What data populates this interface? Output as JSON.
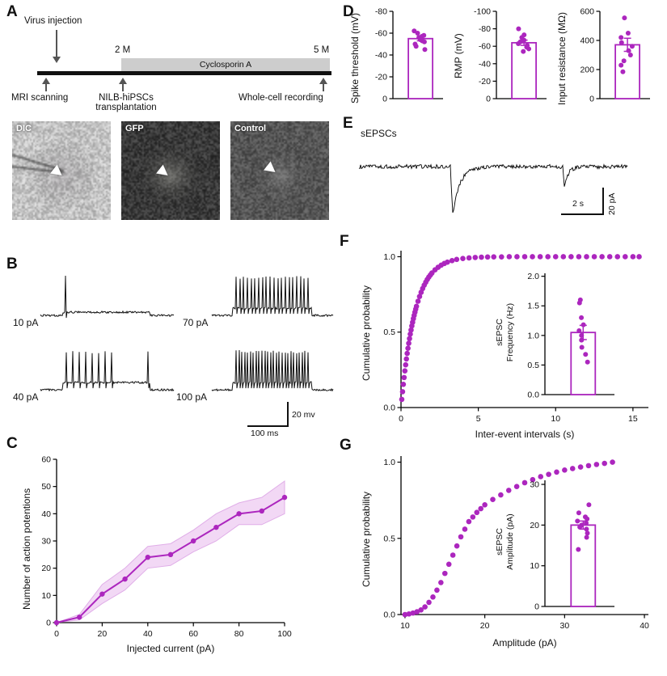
{
  "figure": {
    "accent": "#AC26BE",
    "accent_light": "#F2D8F5",
    "band_edge": "#E0AEE8",
    "background": "#ffffff"
  },
  "panel_letters": {
    "a": "A",
    "b": "B",
    "c": "C",
    "d": "D",
    "e": "E",
    "f": "F",
    "g": "G"
  },
  "panel_a": {
    "virus_injection": "Virus injection",
    "mri_scanning": "MRI scanning",
    "month2": "2 M",
    "month5": "5 M",
    "cyclosporin": "Cyclosporin A",
    "transplant_line1": "NILB-hiPSCs",
    "transplant_line2": "transplantation",
    "whole_cell": "Whole-cell recording",
    "images": [
      {
        "label": "DIC"
      },
      {
        "label": "GFP"
      },
      {
        "label": "Control"
      }
    ]
  },
  "panel_b": {
    "traces": [
      {
        "label": "10 pA",
        "spikes": 1,
        "pattern": "single"
      },
      {
        "label": "70 pA",
        "spikes": 20,
        "pattern": "full"
      },
      {
        "label": "40 pA",
        "spikes": 9,
        "pattern": "early"
      },
      {
        "label": "100 pA",
        "spikes": 26,
        "pattern": "full"
      }
    ],
    "scale_vertical": "20 mv",
    "scale_horizontal": "100 ms"
  },
  "panel_e": {
    "title": "sEPSCs",
    "scale_horizontal": "2 s",
    "scale_vertical": "20 pA"
  },
  "chart_data": [
    {
      "id": "C",
      "type": "line",
      "x": [
        0,
        10,
        20,
        30,
        40,
        50,
        60,
        70,
        80,
        90,
        100
      ],
      "values": [
        0,
        2,
        10.5,
        16,
        24,
        25,
        30,
        35,
        40,
        41,
        46
      ],
      "band_low": [
        0,
        1,
        7,
        12,
        20,
        21,
        26,
        30,
        36,
        36,
        40
      ],
      "band_high": [
        0,
        3,
        14,
        20,
        28,
        29,
        34,
        40,
        44,
        46,
        52
      ],
      "xlabel": "Injected current (pA)",
      "ylabel": "Number of action potentions",
      "xlim": [
        0,
        100
      ],
      "ylim": [
        0,
        60
      ],
      "xticks": [
        0,
        20,
        40,
        60,
        80,
        100
      ],
      "yticks": [
        0,
        10,
        20,
        30,
        40,
        50,
        60
      ],
      "xdec": 0,
      "ydec": 0
    },
    {
      "id": "D1",
      "type": "bar",
      "ylabel": "Spike threshold (mV)",
      "ylim": [
        0,
        -80
      ],
      "yticks": [
        0,
        -20,
        -40,
        -60,
        -80
      ],
      "ydec": 0,
      "value": -55,
      "err": 2,
      "points": [
        -45,
        -48,
        -50,
        -52,
        -53,
        -54,
        -55,
        -56,
        -57,
        -58,
        -60,
        -62
      ]
    },
    {
      "id": "D2",
      "type": "bar",
      "ylabel": "RMP (mV)",
      "ylim": [
        0,
        -100
      ],
      "yticks": [
        0,
        -20,
        -40,
        -60,
        -80,
        -100
      ],
      "ydec": 0,
      "value": -64,
      "err": 3,
      "points": [
        -54,
        -57,
        -59,
        -61,
        -63,
        -65,
        -67,
        -70,
        -73,
        -80
      ]
    },
    {
      "id": "D3",
      "type": "bar",
      "ylabel": "Input resistance (MΩ)",
      "ylim": [
        0,
        600
      ],
      "yticks": [
        0,
        200,
        400,
        600
      ],
      "ydec": 0,
      "value": 370,
      "err": 45,
      "points": [
        185,
        230,
        260,
        300,
        330,
        360,
        385,
        420,
        450,
        555
      ]
    },
    {
      "id": "F",
      "type": "scatter",
      "xlabel": "Inter-event intervals (s)",
      "ylabel": "Cumulative probability",
      "xlim": [
        0,
        16
      ],
      "ylim": [
        0,
        1.04
      ],
      "xticks": [
        0,
        5,
        10,
        15
      ],
      "yticks": [
        0,
        0.5,
        1
      ],
      "xdec": 0,
      "ydec": 1,
      "points": [
        [
          0.05,
          0.054
        ],
        [
          0.1,
          0.105
        ],
        [
          0.15,
          0.154
        ],
        [
          0.2,
          0.199
        ],
        [
          0.25,
          0.243
        ],
        [
          0.3,
          0.283
        ],
        [
          0.35,
          0.322
        ],
        [
          0.4,
          0.359
        ],
        [
          0.45,
          0.393
        ],
        [
          0.5,
          0.426
        ],
        [
          0.55,
          0.457
        ],
        [
          0.6,
          0.487
        ],
        [
          0.65,
          0.514
        ],
        [
          0.7,
          0.541
        ],
        [
          0.75,
          0.565
        ],
        [
          0.8,
          0.589
        ],
        [
          0.85,
          0.611
        ],
        [
          0.9,
          0.632
        ],
        [
          0.95,
          0.652
        ],
        [
          1.0,
          0.671
        ],
        [
          1.1,
          0.705
        ],
        [
          1.2,
          0.736
        ],
        [
          1.3,
          0.764
        ],
        [
          1.4,
          0.789
        ],
        [
          1.5,
          0.811
        ],
        [
          1.6,
          0.831
        ],
        [
          1.7,
          0.849
        ],
        [
          1.8,
          0.865
        ],
        [
          1.9,
          0.879
        ],
        [
          2.0,
          0.892
        ],
        [
          2.2,
          0.913
        ],
        [
          2.4,
          0.93
        ],
        [
          2.6,
          0.944
        ],
        [
          2.8,
          0.955
        ],
        [
          3.0,
          0.964
        ],
        [
          3.3,
          0.974
        ],
        [
          3.6,
          0.982
        ],
        [
          4.0,
          0.988
        ],
        [
          4.4,
          0.992
        ],
        [
          4.8,
          0.995
        ],
        [
          5.2,
          0.997
        ],
        [
          5.6,
          0.998
        ],
        [
          6.0,
          0.999
        ],
        [
          6.5,
          0.999
        ],
        [
          7.0,
          1.0
        ],
        [
          7.5,
          1.0
        ],
        [
          8.0,
          1.0
        ],
        [
          8.5,
          1.0
        ],
        [
          9.0,
          1.0
        ],
        [
          9.5,
          1.0
        ],
        [
          10.0,
          1.0
        ],
        [
          10.5,
          1.0
        ],
        [
          11.0,
          1.0
        ],
        [
          11.5,
          1.0
        ],
        [
          12.0,
          1.0
        ],
        [
          12.5,
          1.0
        ],
        [
          13.0,
          1.0
        ],
        [
          13.5,
          1.0
        ],
        [
          14.0,
          1.0
        ],
        [
          14.5,
          1.0
        ],
        [
          15.0,
          1.0
        ],
        [
          15.4,
          1.0
        ]
      ]
    },
    {
      "id": "FI",
      "type": "bar",
      "ylabel_line1": "sEPSC",
      "ylabel_line2": "Frequency (Hz)",
      "ylim": [
        0,
        2.05
      ],
      "yticks": [
        0,
        0.5,
        1,
        1.5,
        2
      ],
      "ydec": 1,
      "value": 1.05,
      "err": 0.12,
      "points": [
        0.55,
        0.68,
        0.8,
        0.92,
        1.0,
        1.08,
        1.18,
        1.3,
        1.55,
        1.6
      ]
    },
    {
      "id": "G",
      "type": "scatter",
      "xlabel": "Amplitude (pA)",
      "ylabel": "Cumulative probability",
      "xlim": [
        9.5,
        40.5
      ],
      "ylim": [
        0,
        1.04
      ],
      "xticks": [
        10,
        20,
        30,
        40
      ],
      "yticks": [
        0,
        0.5,
        1
      ],
      "xdec": 0,
      "ydec": 1,
      "points": [
        [
          10,
          0.0
        ],
        [
          10.5,
          0.004
        ],
        [
          11,
          0.01
        ],
        [
          11.5,
          0.018
        ],
        [
          12,
          0.03
        ],
        [
          12.5,
          0.05
        ],
        [
          13,
          0.08
        ],
        [
          13.5,
          0.115
        ],
        [
          14,
          0.16
        ],
        [
          14.5,
          0.21
        ],
        [
          15,
          0.27
        ],
        [
          15.5,
          0.33
        ],
        [
          16,
          0.39
        ],
        [
          16.5,
          0.45
        ],
        [
          17,
          0.51
        ],
        [
          17.5,
          0.56
        ],
        [
          18,
          0.61
        ],
        [
          18.5,
          0.64
        ],
        [
          19,
          0.67
        ],
        [
          19.5,
          0.695
        ],
        [
          20,
          0.72
        ],
        [
          21,
          0.755
        ],
        [
          22,
          0.785
        ],
        [
          23,
          0.815
        ],
        [
          24,
          0.84
        ],
        [
          25,
          0.865
        ],
        [
          26,
          0.885
        ],
        [
          27,
          0.905
        ],
        [
          28,
          0.92
        ],
        [
          29,
          0.935
        ],
        [
          30,
          0.948
        ],
        [
          31,
          0.958
        ],
        [
          32,
          0.968
        ],
        [
          33,
          0.977
        ],
        [
          34,
          0.985
        ],
        [
          35,
          0.992
        ],
        [
          36,
          1.0
        ]
      ]
    },
    {
      "id": "GI",
      "type": "bar",
      "ylabel_line1": "sEPSC",
      "ylabel_line2": "Amplitude (pA)",
      "ylim": [
        0,
        31
      ],
      "yticks": [
        0,
        10,
        20,
        30
      ],
      "ydec": 0,
      "value": 20,
      "err": 1,
      "points": [
        14,
        17,
        18,
        19,
        19.5,
        20,
        20.5,
        21,
        21.5,
        22,
        23,
        25
      ]
    }
  ]
}
